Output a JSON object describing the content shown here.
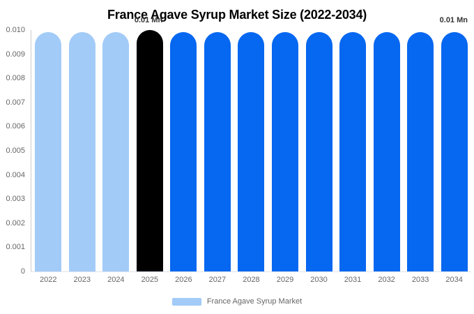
{
  "chart_data": {
    "type": "bar",
    "title": "France Agave Syrup Market Size (2022-2034)",
    "categories": [
      "2022",
      "2023",
      "2024",
      "2025",
      "2026",
      "2027",
      "2028",
      "2029",
      "2030",
      "2031",
      "2032",
      "2033",
      "2034"
    ],
    "series": [
      {
        "name": "France Agave Syrup Market",
        "unit": "Mn",
        "values": [
          0.0099,
          0.0099,
          0.0099,
          0.01,
          0.0099,
          0.0099,
          0.0099,
          0.0099,
          0.0099,
          0.0099,
          0.0099,
          0.0099,
          0.0099
        ]
      }
    ],
    "point_colors": [
      "#a2cbf7",
      "#a2cbf7",
      "#a2cbf7",
      "#000000",
      "#0667f0",
      "#0667f0",
      "#0667f0",
      "#0667f0",
      "#0667f0",
      "#0667f0",
      "#0667f0",
      "#0667f0",
      "#0667f0"
    ],
    "data_labels": [
      {
        "category": "2025",
        "text": "0.01 Mn"
      },
      {
        "category": "2034",
        "text": "0.01 Mn"
      }
    ],
    "xlabel": "",
    "ylabel": "",
    "ylim": [
      0,
      0.01
    ],
    "y_ticks": [
      "0.010",
      "0.009",
      "0.008",
      "0.007",
      "0.006",
      "0.005",
      "0.004",
      "0.003",
      "0.002",
      "0.001",
      "0"
    ],
    "grid": false,
    "legend_position": "bottom",
    "colors": {
      "historical_bar": "#a2cbf7",
      "highlight_bar": "#000000",
      "forecast_bar": "#0667f0",
      "legend_swatch": "#a2cbf7",
      "axis_text": "#666666",
      "data_label_text": "#333333",
      "title_text": "#000000"
    }
  }
}
